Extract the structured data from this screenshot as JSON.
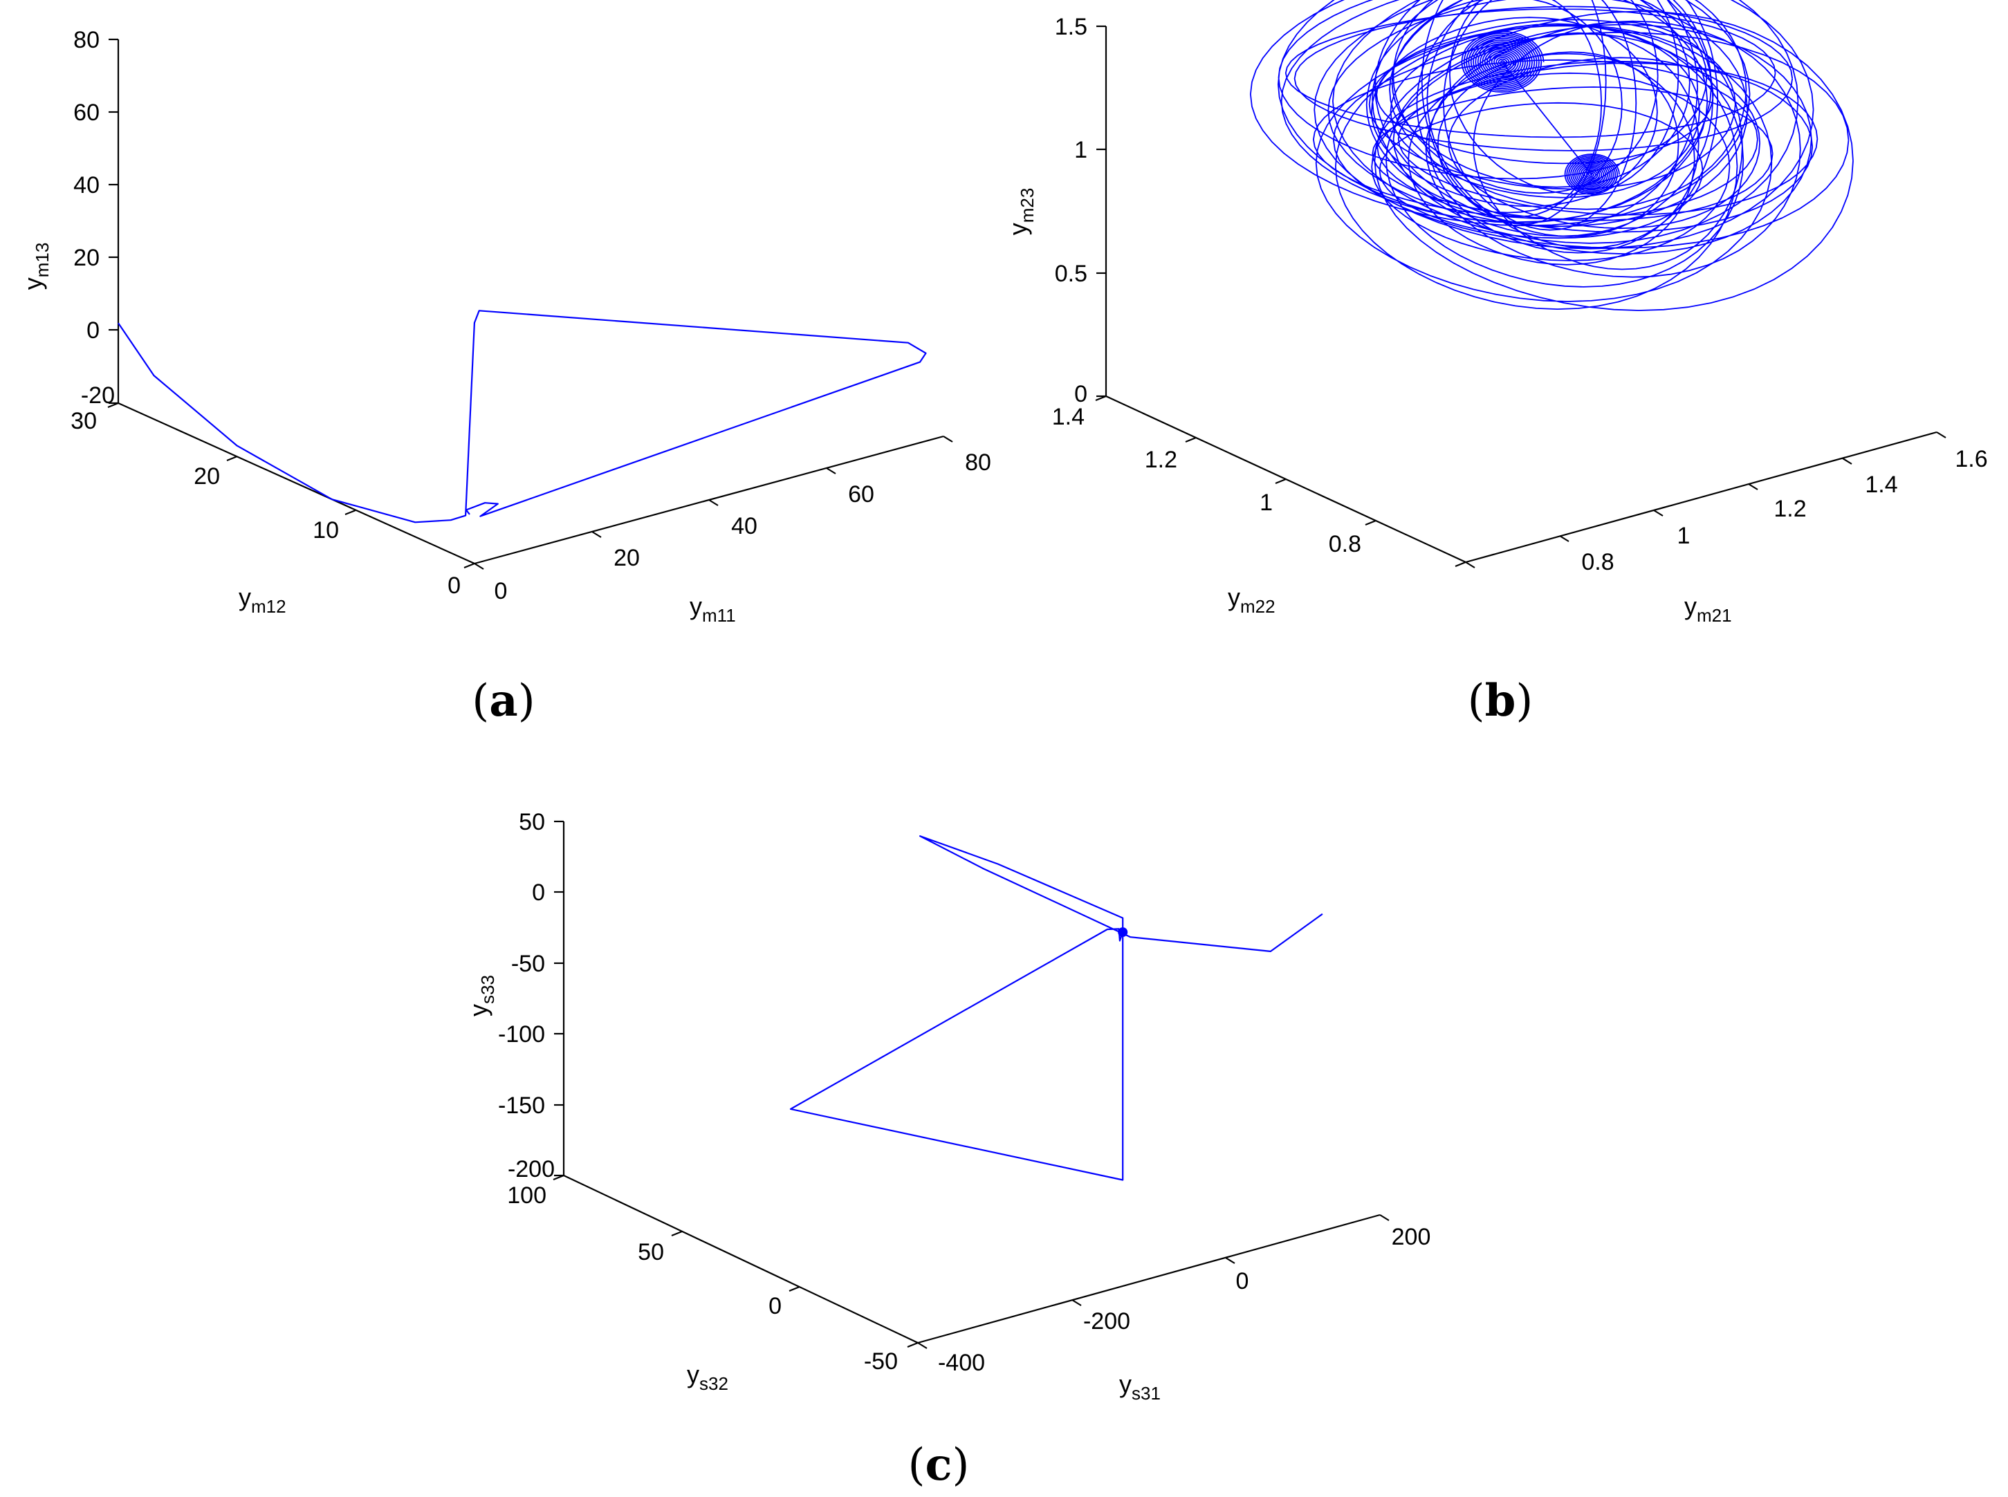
{
  "chart_data": [
    {
      "type": "line3d",
      "caption": "a",
      "series_color": "#0000ff",
      "xlabel": {
        "base": "y",
        "sub": "m11"
      },
      "ylabel": {
        "base": "y",
        "sub": "m12"
      },
      "zlabel": {
        "base": "y",
        "sub": "m13"
      },
      "xticks": [
        "0",
        "20",
        "40",
        "60",
        "80"
      ],
      "yticks": [
        "0",
        "10",
        "20",
        "30"
      ],
      "zticks": [
        "-20",
        "0",
        "20",
        "40",
        "60",
        "80"
      ],
      "xlim": [
        0,
        80
      ],
      "ylim": [
        0,
        30
      ],
      "zlim": [
        -20,
        80
      ],
      "points": [
        {
          "x": 0,
          "y": 30,
          "z": 2
        },
        {
          "x": 0,
          "y": 27,
          "z": -8
        },
        {
          "x": 0,
          "y": 20,
          "z": -17
        },
        {
          "x": 0,
          "y": 12,
          "z": -20
        },
        {
          "x": 0,
          "y": 5,
          "z": -16
        },
        {
          "x": 0,
          "y": 2,
          "z": -11
        },
        {
          "x": 0.5,
          "y": 1,
          "z": -8.5
        },
        {
          "x": 1,
          "y": 0.5,
          "z": 45
        },
        {
          "x": 1.8,
          "y": 0.5,
          "z": 48
        },
        {
          "x": 76,
          "y": 1,
          "z": 6
        },
        {
          "x": 78,
          "y": 0.5,
          "z": 3
        },
        {
          "x": 77,
          "y": 0.5,
          "z": 1
        },
        {
          "x": 2,
          "y": 0.5,
          "z": -8.6
        },
        {
          "x": 5,
          "y": 0.5,
          "z": -6.5
        },
        {
          "x": 3,
          "y": 0.6,
          "z": -5.5
        },
        {
          "x": 0.6,
          "y": 1,
          "z": -7
        },
        {
          "x": 0.8,
          "y": 0.8,
          "z": -8
        }
      ]
    },
    {
      "type": "line3d",
      "caption": "b",
      "series_color": "#0000ff",
      "xlabel": {
        "base": "y",
        "sub": "m21"
      },
      "ylabel": {
        "base": "y",
        "sub": "m22"
      },
      "zlabel": {
        "base": "y",
        "sub": "m23"
      },
      "xticks": [
        "0.8",
        "1",
        "1.2",
        "1.4",
        "1.6"
      ],
      "yticks": [
        "0.8",
        "1",
        "1.2",
        "1.4"
      ],
      "zticks": [
        "0",
        "0.5",
        "1",
        "1.5"
      ],
      "xlim": [
        0.6,
        1.6
      ],
      "ylim": [
        0.6,
        1.4
      ],
      "zlim": [
        0,
        1.5
      ],
      "attractor": {
        "center_a": [
          1.23,
          0.98,
          0.92
        ],
        "center_b": [
          1.25,
          1.2,
          1.18
        ],
        "outer_extent": {
          "x": [
            0.7,
            1.55
          ],
          "y": [
            0.7,
            1.3
          ],
          "z": [
            0.1,
            1.3
          ]
        }
      }
    },
    {
      "type": "line3d",
      "caption": "c",
      "series_color": "#0000ff",
      "xlabel": {
        "base": "y",
        "sub": "s31"
      },
      "ylabel": {
        "base": "y",
        "sub": "s32"
      },
      "zlabel": {
        "base": "y",
        "sub": "s33"
      },
      "xticks": [
        "-400",
        "-200",
        "0",
        "200"
      ],
      "yticks": [
        "-50",
        "0",
        "50",
        "100"
      ],
      "zticks": [
        "-200",
        "-150",
        "-100",
        "-50",
        "0",
        "50"
      ],
      "xlim": [
        -400,
        200
      ],
      "ylim": [
        -50,
        100
      ],
      "zlim": [
        -200,
        50
      ],
      "points": [
        {
          "x": 110,
          "y": -55,
          "z": 30
        },
        {
          "x": 150,
          "y": -20,
          "z": -30
        },
        {
          "x": 60,
          "y": 10,
          "z": -30
        },
        {
          "x": -40,
          "y": 40,
          "z": 10
        },
        {
          "x": -60,
          "y": 60,
          "z": 20
        },
        {
          "x": -20,
          "y": 40,
          "z": 10
        },
        {
          "x": 50,
          "y": 10,
          "z": -15
        },
        {
          "x": 50,
          "y": 10,
          "z": -20
        },
        {
          "x": 50,
          "y": 10,
          "z": -200
        },
        {
          "x": -320,
          "y": 30,
          "z": -110
        },
        {
          "x": 30,
          "y": 10,
          "z": -20
        },
        {
          "x": 45,
          "y": 10,
          "z": -22
        },
        {
          "x": 40,
          "y": 8,
          "z": -28
        },
        {
          "x": 50,
          "y": 10,
          "z": -25
        }
      ]
    }
  ]
}
